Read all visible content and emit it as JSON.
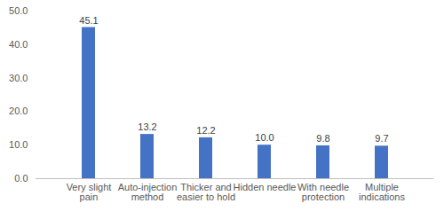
{
  "chart_data": {
    "type": "bar",
    "categories": [
      "Very slight pain",
      "Auto-injection method",
      "Thicker and easier to hold",
      "Hidden needle",
      "With needle protection",
      "Multiple indications"
    ],
    "values": [
      45.1,
      13.2,
      12.2,
      10.0,
      9.8,
      9.7
    ],
    "value_labels": [
      "45.1",
      "13.2",
      "12.2",
      "10.0",
      "9.8",
      "9.7"
    ],
    "color": "#4472c4",
    "ylim": [
      0,
      50
    ],
    "yticks": [
      {
        "value": 0,
        "label": "0.0"
      },
      {
        "value": 10,
        "label": "10.0"
      },
      {
        "value": 20,
        "label": "20.0"
      },
      {
        "value": 30,
        "label": "30.0"
      },
      {
        "value": 40,
        "label": "40.0"
      },
      {
        "value": 50,
        "label": "50.0"
      }
    ],
    "grid": false,
    "data_labels": true
  }
}
